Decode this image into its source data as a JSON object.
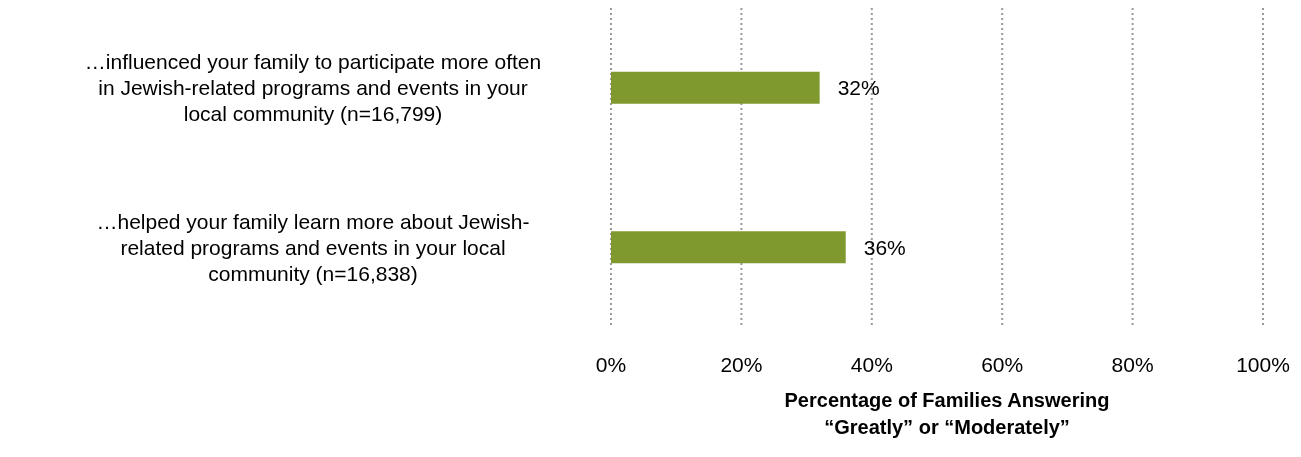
{
  "chart_data": {
    "type": "bar",
    "orientation": "horizontal",
    "categories": [
      "…influenced your family to participate more often in Jewish-related programs and events in your local community (n=16,799)",
      "…helped your family learn more about Jewish-related programs and events in your local community (n=16,838)"
    ],
    "values": [
      32,
      36
    ],
    "color": "#7f992f",
    "value_labels": [
      "32%",
      "36%"
    ],
    "xlabel": "Percentage of Families Answering “Greatly” or “Moderately”",
    "xlim": [
      0,
      100
    ],
    "xticks": [
      {
        "value": 0,
        "label": "0%"
      },
      {
        "value": 20,
        "label": "20%"
      },
      {
        "value": 40,
        "label": "40%"
      },
      {
        "value": 60,
        "label": "60%"
      },
      {
        "value": 80,
        "label": "80%"
      },
      {
        "value": 100,
        "label": "100%"
      }
    ],
    "grid": "x",
    "legend": false
  }
}
